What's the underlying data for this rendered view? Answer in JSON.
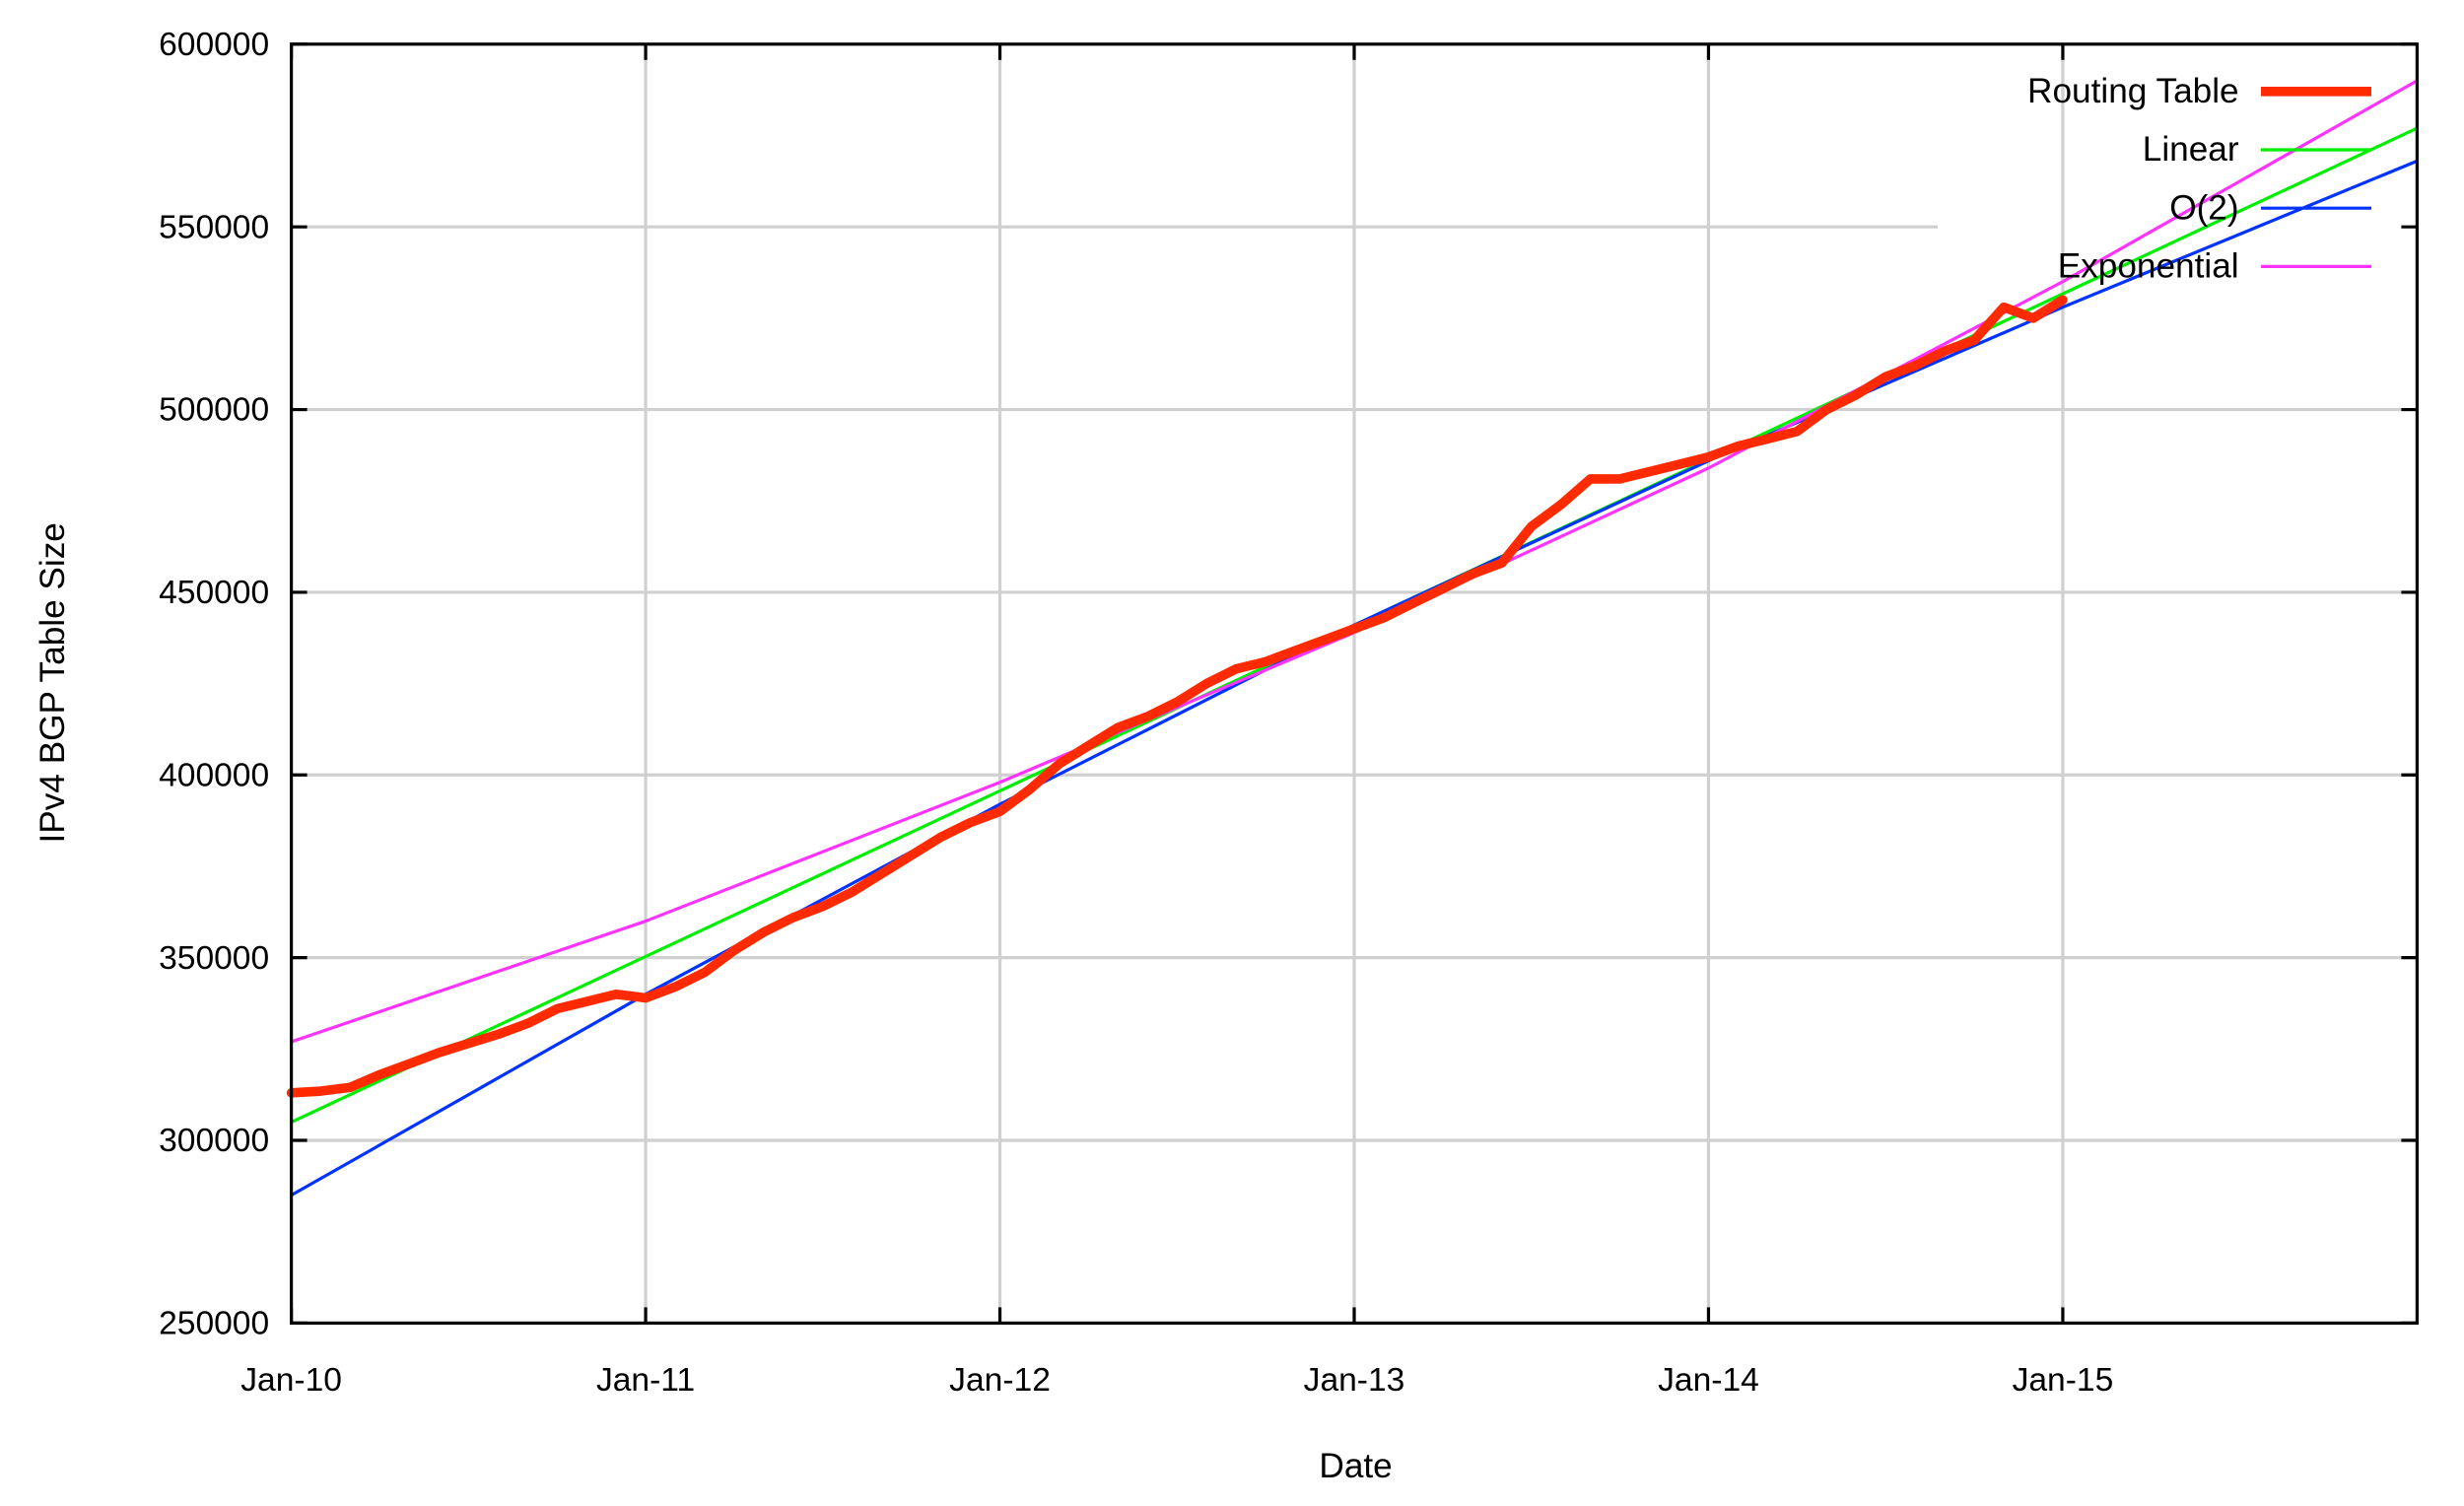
{
  "chart_data": {
    "type": "line",
    "xlabel": "Date",
    "ylabel": "IPv4 BGP Table Size",
    "xlim": [
      "2010-01",
      "2016-01"
    ],
    "ylim": [
      250000,
      600000
    ],
    "grid": true,
    "legend_position": "top-right",
    "x_ticks": [
      {
        "date": "2010-01",
        "label": "Jan-10"
      },
      {
        "date": "2011-01",
        "label": "Jan-11"
      },
      {
        "date": "2012-01",
        "label": "Jan-12"
      },
      {
        "date": "2013-01",
        "label": "Jan-13"
      },
      {
        "date": "2014-01",
        "label": "Jan-14"
      },
      {
        "date": "2015-01",
        "label": "Jan-15"
      }
    ],
    "y_ticks": [
      "250000",
      "300000",
      "350000",
      "400000",
      "450000",
      "500000",
      "550000",
      "600000"
    ],
    "series": [
      {
        "name": "Routing Table",
        "color": "#ff2a00",
        "width": 6,
        "x": [
          "2010-01",
          "2010-02",
          "2010-03",
          "2010-04",
          "2010-05",
          "2010-06",
          "2010-07",
          "2010-08",
          "2010-09",
          "2010-10",
          "2010-11",
          "2010-12",
          "2011-01",
          "2011-02",
          "2011-03",
          "2011-04",
          "2011-05",
          "2011-06",
          "2011-07",
          "2011-08",
          "2011-09",
          "2011-10",
          "2011-11",
          "2011-12",
          "2012-01",
          "2012-02",
          "2012-03",
          "2012-04",
          "2012-05",
          "2012-06",
          "2012-07",
          "2012-08",
          "2012-09",
          "2012-10",
          "2012-11",
          "2012-12",
          "2013-01",
          "2013-02",
          "2013-03",
          "2013-04",
          "2013-05",
          "2013-06",
          "2013-07",
          "2013-08",
          "2013-09",
          "2013-10",
          "2013-11",
          "2013-12",
          "2014-01",
          "2014-02",
          "2014-03",
          "2014-04",
          "2014-05",
          "2014-06",
          "2014-07",
          "2014-08",
          "2014-09",
          "2014-10",
          "2014-11",
          "2014-12",
          "2015-01"
        ],
        "y": [
          313000,
          313500,
          314500,
          318000,
          321000,
          324000,
          326500,
          329000,
          332000,
          336000,
          338000,
          340000,
          339000,
          342000,
          346000,
          352000,
          357000,
          361000,
          364000,
          368000,
          373000,
          378000,
          383000,
          387000,
          390000,
          396000,
          403000,
          408000,
          413000,
          416000,
          420000,
          425000,
          429000,
          431000,
          434000,
          437000,
          440000,
          443000,
          447000,
          451000,
          455000,
          458000,
          468000,
          474000,
          481000,
          481000,
          483000,
          485000,
          487000,
          490000,
          492000,
          494000,
          500000,
          504000,
          509000,
          512000,
          516000,
          519000,
          528000,
          525000,
          530000
        ]
      },
      {
        "name": "Linear",
        "color": "#00ee00",
        "width": 2,
        "x": [
          "2010-01",
          "2016-01"
        ],
        "y": [
          305000,
          577000
        ]
      },
      {
        "name": "O(2)",
        "color": "#0033ff",
        "width": 2,
        "x": [
          "2010-01",
          "2011-01",
          "2012-01",
          "2013-01",
          "2014-01",
          "2015-01",
          "2016-01"
        ],
        "y": [
          285000,
          340000,
          392000,
          441000,
          486000,
          528000,
          568000
        ]
      },
      {
        "name": "Exponential",
        "color": "#ff33ff",
        "width": 2,
        "x": [
          "2010-01",
          "2011-01",
          "2012-01",
          "2013-01",
          "2014-01",
          "2015-01",
          "2016-01"
        ],
        "y": [
          327000,
          360000,
          398000,
          439000,
          484000,
          535000,
          590000
        ]
      }
    ]
  }
}
